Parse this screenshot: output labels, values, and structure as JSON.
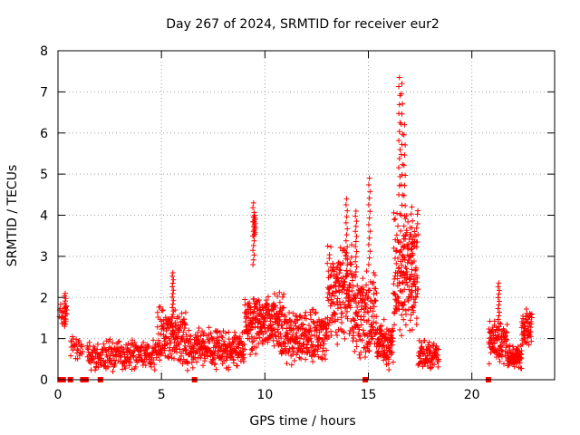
{
  "chart_data": {
    "type": "scatter",
    "title": "Day 267 of 2024, SRMTID for receiver eur2",
    "xlabel": "GPS time / hours",
    "ylabel": "SRMTID / TECUs",
    "xlim": [
      0,
      24
    ],
    "ylim": [
      0,
      8
    ],
    "xticks": [
      0,
      5,
      10,
      15,
      20
    ],
    "yticks": [
      0,
      1,
      2,
      3,
      4,
      5,
      6,
      7,
      8
    ],
    "grid": true,
    "marker": "+",
    "color": "#ff0000",
    "segments": [
      {
        "x0": 0.05,
        "x1": 0.45,
        "base": 1.6,
        "amp": 0.35,
        "n": 18,
        "seed": 11
      },
      {
        "x0": 0.6,
        "x1": 1.2,
        "base": 0.75,
        "amp": 0.35,
        "n": 30,
        "seed": 12
      },
      {
        "x0": 1.4,
        "x1": 4.8,
        "base": 0.6,
        "amp": 0.4,
        "n": 240,
        "seed": 13
      },
      {
        "x0": 4.8,
        "x1": 6.2,
        "base": 1.05,
        "amp": 0.75,
        "n": 160,
        "seed": 14
      },
      {
        "x0": 6.2,
        "x1": 9.0,
        "base": 0.75,
        "amp": 0.55,
        "n": 260,
        "seed": 15
      },
      {
        "x0": 9.0,
        "x1": 11.0,
        "base": 1.35,
        "amp": 0.8,
        "n": 260,
        "seed": 16
      },
      {
        "x0": 11.0,
        "x1": 13.0,
        "base": 1.05,
        "amp": 0.75,
        "n": 220,
        "seed": 17
      },
      {
        "x0": 13.0,
        "x1": 14.2,
        "base": 2.1,
        "amp": 1.3,
        "n": 170,
        "seed": 18
      },
      {
        "x0": 14.2,
        "x1": 15.4,
        "base": 1.6,
        "amp": 1.2,
        "n": 160,
        "seed": 19
      },
      {
        "x0": 15.4,
        "x1": 16.2,
        "base": 0.9,
        "amp": 0.7,
        "n": 100,
        "seed": 20
      },
      {
        "x0": 16.2,
        "x1": 17.4,
        "base": 2.6,
        "amp": 1.8,
        "n": 200,
        "seed": 21
      },
      {
        "x0": 17.4,
        "x1": 18.4,
        "base": 0.6,
        "amp": 0.4,
        "n": 90,
        "seed": 22
      },
      {
        "x0": 20.8,
        "x1": 21.7,
        "base": 0.9,
        "amp": 0.6,
        "n": 100,
        "seed": 23
      },
      {
        "x0": 21.7,
        "x1": 22.4,
        "base": 0.55,
        "amp": 0.35,
        "n": 90,
        "seed": 24
      },
      {
        "x0": 22.4,
        "x1": 22.9,
        "base": 1.3,
        "amp": 0.5,
        "n": 60,
        "seed": 25
      }
    ],
    "spikes": [
      {
        "x": 0.35,
        "y0": 1.3,
        "y1": 2.1
      },
      {
        "x": 5.55,
        "y0": 1.5,
        "y1": 2.6
      },
      {
        "x": 9.45,
        "y0": 2.8,
        "y1": 4.3
      },
      {
        "x": 9.5,
        "y0": 3.5,
        "y1": 4.0
      },
      {
        "x": 13.95,
        "y0": 2.5,
        "y1": 4.4
      },
      {
        "x": 14.4,
        "y0": 2.5,
        "y1": 4.1
      },
      {
        "x": 15.05,
        "y0": 2.8,
        "y1": 4.9
      },
      {
        "x": 16.5,
        "y0": 4.5,
        "y1": 7.35
      },
      {
        "x": 16.62,
        "y0": 4.0,
        "y1": 7.2
      },
      {
        "x": 16.75,
        "y0": 3.0,
        "y1": 6.2
      },
      {
        "x": 17.1,
        "y0": 2.0,
        "y1": 4.2
      },
      {
        "x": 21.3,
        "y0": 1.2,
        "y1": 2.35
      }
    ],
    "zero_points": [
      0.1,
      0.25,
      0.6,
      1.2,
      1.35,
      2.05,
      6.6,
      14.85,
      20.8
    ]
  }
}
